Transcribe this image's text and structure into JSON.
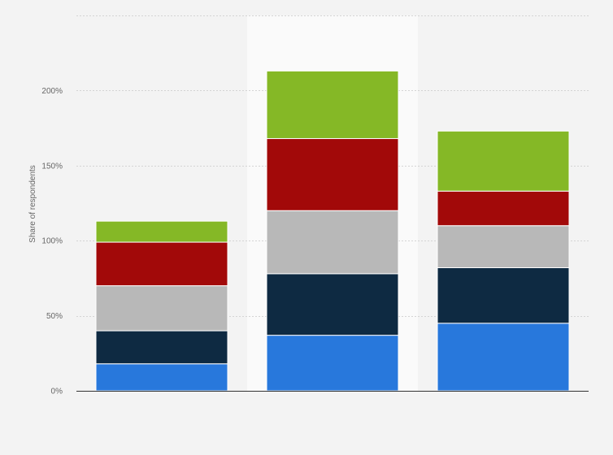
{
  "chart_data": {
    "type": "bar",
    "stacked": true,
    "title": "",
    "xlabel": "",
    "ylabel": "Share of respondents",
    "ylim": [
      0,
      250
    ],
    "y_ticks": [
      {
        "value": 0,
        "label": "0%"
      },
      {
        "value": 50,
        "label": "50%"
      },
      {
        "value": 100,
        "label": "100%"
      },
      {
        "value": 150,
        "label": "150%"
      },
      {
        "value": 200,
        "label": "200%"
      }
    ],
    "grid": true,
    "legend": "none",
    "highlighted_category_index": 1,
    "categories": [
      "",
      "",
      ""
    ],
    "series": [
      {
        "color": "#2878dc",
        "values": [
          18,
          37,
          45
        ]
      },
      {
        "color": "#0e2a42",
        "values": [
          22,
          41,
          37
        ]
      },
      {
        "color": "#b8b8b8",
        "values": [
          30,
          42,
          28
        ]
      },
      {
        "color": "#a20909",
        "values": [
          29,
          48,
          23
        ]
      },
      {
        "color": "#85b826",
        "values": [
          14,
          45,
          40
        ]
      }
    ]
  }
}
